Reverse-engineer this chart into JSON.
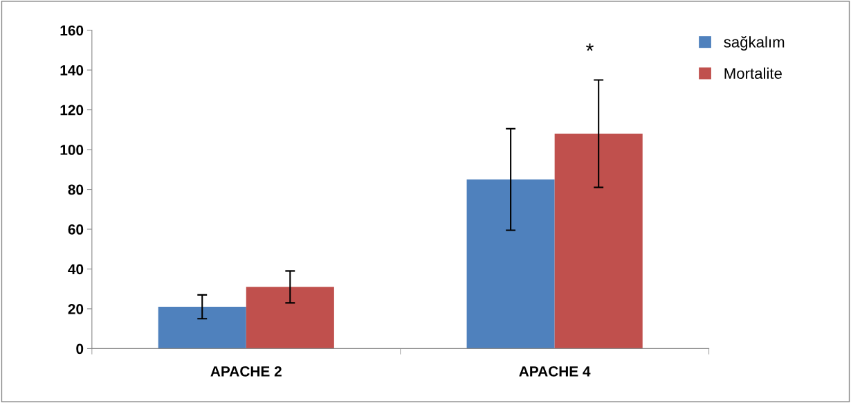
{
  "chart_data": {
    "type": "bar",
    "categories": [
      "APACHE 2",
      "APACHE 4"
    ],
    "series": [
      {
        "name": "sağkalım",
        "color": "#4f81bd",
        "values": [
          21,
          85
        ],
        "errors": [
          6,
          25.5
        ]
      },
      {
        "name": "Mortalite",
        "color": "#c0504d",
        "values": [
          31,
          108
        ],
        "errors": [
          8,
          27
        ]
      }
    ],
    "ylim": [
      0,
      160
    ],
    "yticks": [
      0,
      20,
      40,
      60,
      80,
      100,
      120,
      140,
      160
    ],
    "annotations": [
      "*"
    ],
    "grid": false,
    "legend": "top right"
  }
}
